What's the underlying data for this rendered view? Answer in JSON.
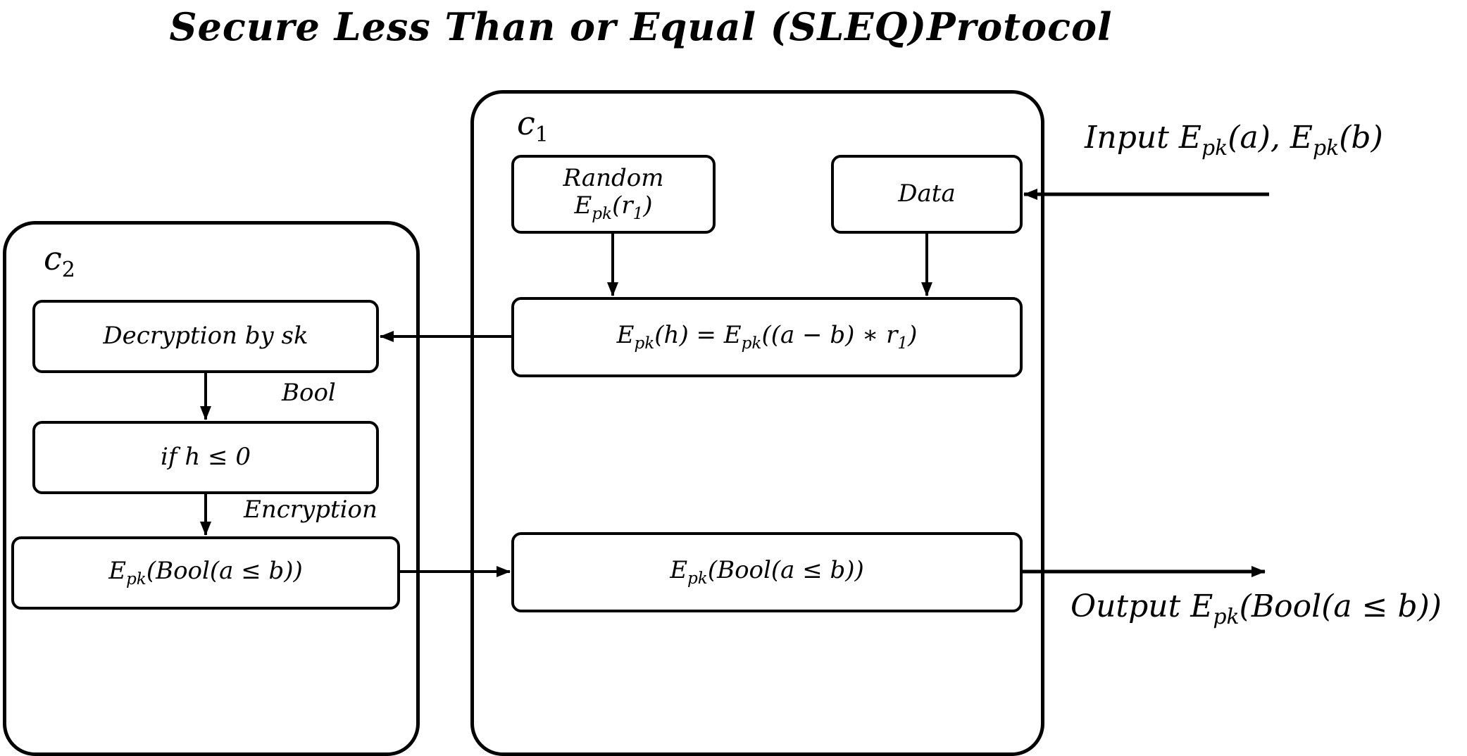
{
  "title": "Secure Less Than or Equal (SLEQ)Protocol",
  "panels": {
    "c1": {
      "letter": "c",
      "index": "1"
    },
    "c2": {
      "letter": "c",
      "index": "2"
    }
  },
  "c1_nodes": {
    "random_line1": "Random",
    "random_E": "E",
    "random_sub": "pk",
    "random_arg": "(r",
    "random_argsub": "1",
    "random_close": ")",
    "data": "Data",
    "h_E": "E",
    "h_sub": "pk",
    "h_mid": "(h) = E",
    "h_sub2": "pk",
    "h_tail": "((a − b) ∗ r",
    "h_tailsub": "1",
    "h_close": ")",
    "result_E": "E",
    "result_sub": "pk",
    "result_tail": "(Bool(a ≤ b))"
  },
  "c2_nodes": {
    "decrypt": "Decryption by sk",
    "compare": "if h ≤ 0",
    "result_E": "E",
    "result_sub": "pk",
    "result_tail": "(Bool(a ≤ b))"
  },
  "flow_labels": {
    "bool": "Bool",
    "encryption": "Encryption"
  },
  "io": {
    "input_prefix": "Input E",
    "input_sub1": "pk",
    "input_mid": "(a), E",
    "input_sub2": "pk",
    "input_tail": "(b)",
    "output_prefix": "Output E",
    "output_sub": "pk",
    "output_tail": "(Bool(a ≤ b))"
  }
}
